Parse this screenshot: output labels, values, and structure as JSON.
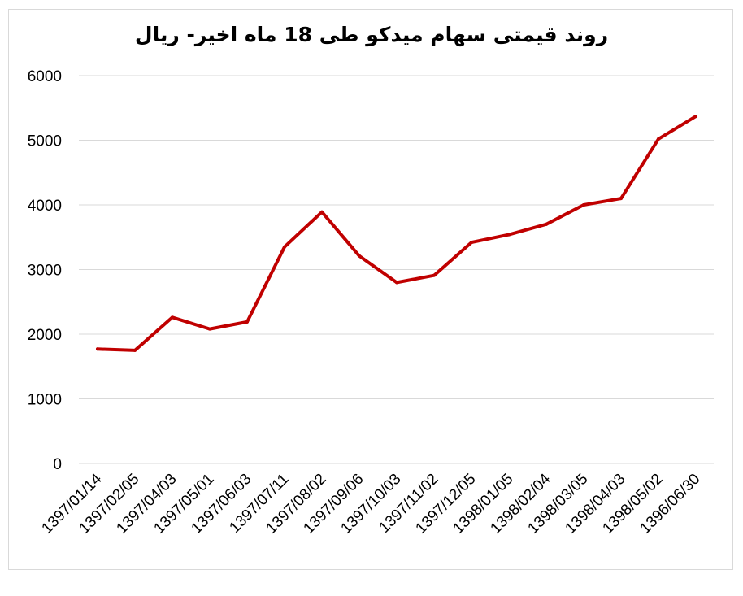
{
  "chart_data": {
    "type": "line",
    "title": "روند قیمتی سهام میدکو طی 18 ماه اخیر- ریال",
    "xlabel": "",
    "ylabel": "",
    "categories": [
      "1397/01/14",
      "1397/02/05",
      "1397/04/03",
      "1397/05/01",
      "1397/06/03",
      "1397/07/11",
      "1397/08/02",
      "1397/09/06",
      "1397/10/03",
      "1397/11/02",
      "1397/12/05",
      "1398/01/05",
      "1398/02/04",
      "1398/03/05",
      "1398/04/03",
      "1398/05/02",
      "1396/06/30"
    ],
    "series": [
      {
        "values": [
          1770,
          1750,
          2260,
          2080,
          2190,
          3350,
          3890,
          3210,
          2800,
          2910,
          3420,
          3540,
          3700,
          4000,
          4100,
          5020,
          5370
        ]
      }
    ],
    "ylim": [
      0,
      6000
    ],
    "yticks": [
      0,
      1000,
      2000,
      3000,
      4000,
      5000,
      6000
    ],
    "grid": true,
    "legend": "none",
    "colors": {
      "line": "#c00000",
      "grid": "#d9d9d9"
    }
  }
}
